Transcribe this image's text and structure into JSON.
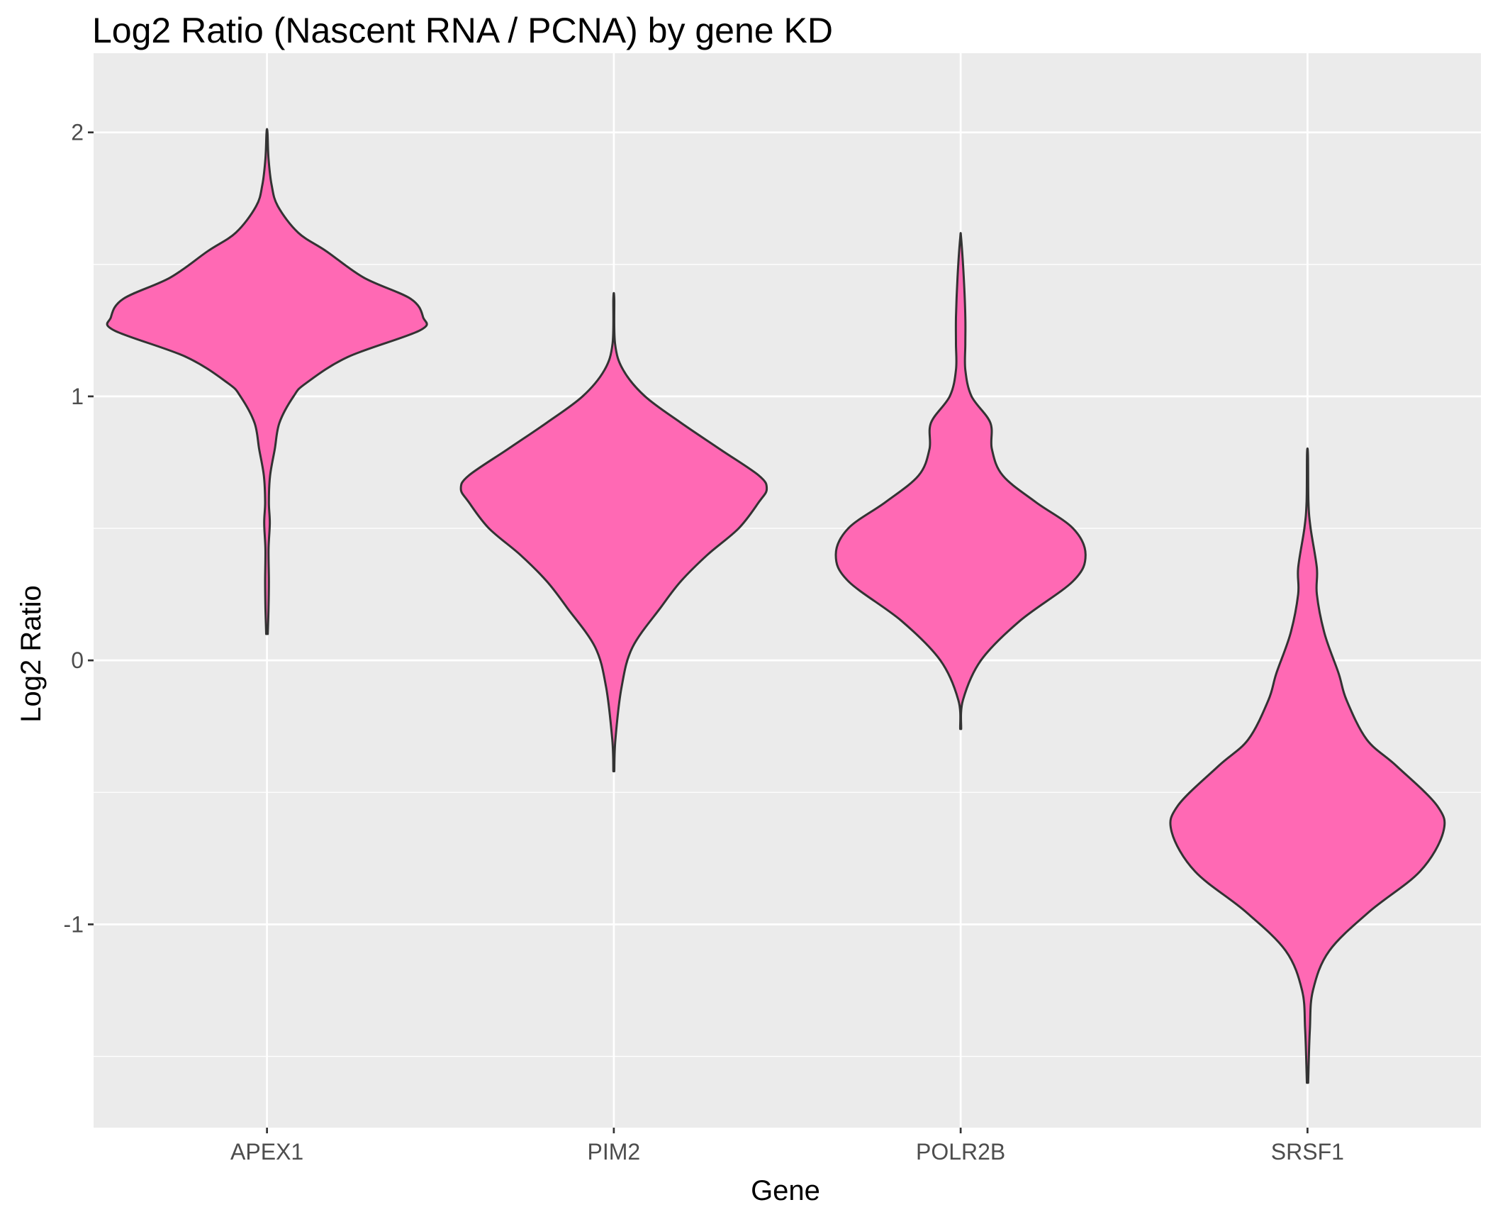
{
  "chart_data": {
    "type": "violin",
    "title": "Log2 Ratio (Nascent RNA / PCNA) by gene KD",
    "xlabel": "Gene",
    "ylabel": "Log2 Ratio",
    "categories": [
      "APEX1",
      "PIM2",
      "POLR2B",
      "SRSF1"
    ],
    "ylim": [
      -1.77,
      2.3
    ],
    "yticks": [
      -1,
      0,
      1,
      2
    ],
    "ytick_labels": [
      "-1",
      "0",
      "1",
      "2"
    ],
    "grid": true,
    "legend": "none",
    "colors": {
      "fill": "#ff69b4",
      "outline": "#333333",
      "panel": "#ebebeb",
      "grid": "#ffffff"
    },
    "series": [
      {
        "category": "APEX1",
        "min": 0.1,
        "max": 2.0,
        "density": [
          [
            0.1,
            0.005
          ],
          [
            0.2,
            0.01
          ],
          [
            0.3,
            0.012
          ],
          [
            0.42,
            0.01
          ],
          [
            0.52,
            0.018
          ],
          [
            0.6,
            0.012
          ],
          [
            0.7,
            0.02
          ],
          [
            0.8,
            0.05
          ],
          [
            0.9,
            0.08
          ],
          [
            1.0,
            0.17
          ],
          [
            1.05,
            0.25
          ],
          [
            1.15,
            0.52
          ],
          [
            1.25,
            0.98
          ],
          [
            1.3,
            1.0
          ],
          [
            1.37,
            0.92
          ],
          [
            1.45,
            0.62
          ],
          [
            1.55,
            0.38
          ],
          [
            1.62,
            0.2
          ],
          [
            1.72,
            0.07
          ],
          [
            1.8,
            0.03
          ],
          [
            1.9,
            0.01
          ],
          [
            2.0,
            0.003
          ]
        ]
      },
      {
        "category": "PIM2",
        "min": -0.42,
        "max": 1.37,
        "density": [
          [
            -0.42,
            0.003
          ],
          [
            -0.3,
            0.01
          ],
          [
            -0.1,
            0.05
          ],
          [
            0.05,
            0.12
          ],
          [
            0.2,
            0.3
          ],
          [
            0.3,
            0.43
          ],
          [
            0.4,
            0.6
          ],
          [
            0.5,
            0.8
          ],
          [
            0.6,
            0.93
          ],
          [
            0.65,
            0.98
          ],
          [
            0.7,
            0.93
          ],
          [
            0.8,
            0.68
          ],
          [
            0.9,
            0.43
          ],
          [
            1.0,
            0.2
          ],
          [
            1.1,
            0.06
          ],
          [
            1.2,
            0.008
          ],
          [
            1.37,
            0.003
          ]
        ]
      },
      {
        "category": "POLR2B",
        "min": -0.26,
        "max": 1.6,
        "density": [
          [
            -0.26,
            0.003
          ],
          [
            -0.15,
            0.015
          ],
          [
            0.0,
            0.13
          ],
          [
            0.15,
            0.38
          ],
          [
            0.3,
            0.72
          ],
          [
            0.4,
            0.8
          ],
          [
            0.5,
            0.72
          ],
          [
            0.6,
            0.48
          ],
          [
            0.7,
            0.27
          ],
          [
            0.8,
            0.2
          ],
          [
            0.9,
            0.19
          ],
          [
            1.0,
            0.07
          ],
          [
            1.1,
            0.03
          ],
          [
            1.2,
            0.03
          ],
          [
            1.3,
            0.03
          ],
          [
            1.45,
            0.02
          ],
          [
            1.6,
            0.003
          ]
        ]
      },
      {
        "category": "SRSF1",
        "min": -1.6,
        "max": 0.78,
        "density": [
          [
            -1.6,
            0.004
          ],
          [
            -1.4,
            0.015
          ],
          [
            -1.25,
            0.035
          ],
          [
            -1.1,
            0.14
          ],
          [
            -0.95,
            0.4
          ],
          [
            -0.8,
            0.72
          ],
          [
            -0.65,
            0.87
          ],
          [
            -0.55,
            0.83
          ],
          [
            -0.4,
            0.57
          ],
          [
            -0.3,
            0.38
          ],
          [
            -0.15,
            0.25
          ],
          [
            -0.05,
            0.2
          ],
          [
            0.1,
            0.11
          ],
          [
            0.25,
            0.06
          ],
          [
            0.35,
            0.06
          ],
          [
            0.5,
            0.02
          ],
          [
            0.6,
            0.006
          ],
          [
            0.78,
            0.003
          ]
        ]
      }
    ]
  }
}
